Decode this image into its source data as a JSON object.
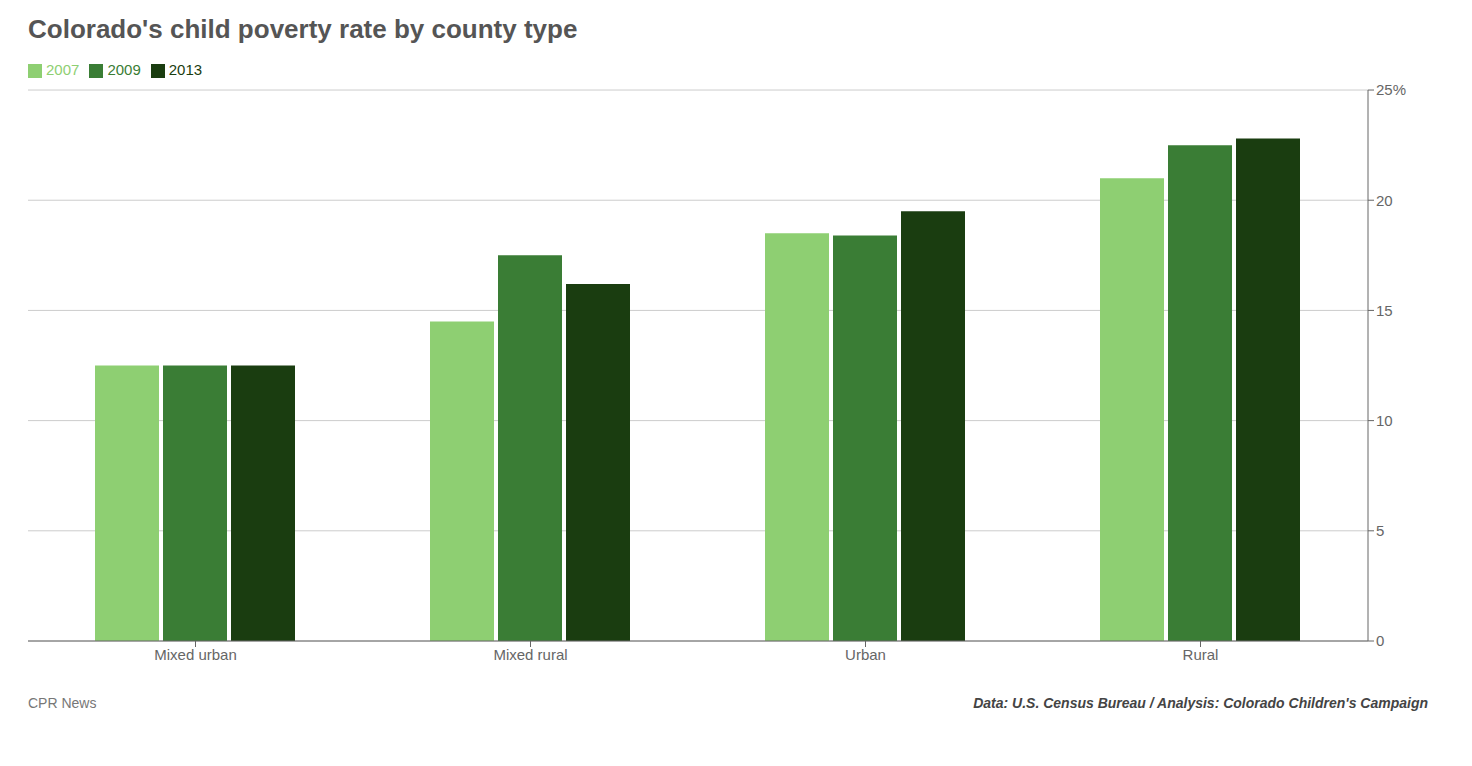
{
  "chart_data": {
    "type": "bar",
    "title": "Colorado's child poverty rate by county type",
    "categories": [
      "Mixed urban",
      "Mixed rural",
      "Urban",
      "Rural"
    ],
    "series": [
      {
        "name": "2007",
        "color": "#8ecf72",
        "values": [
          12.5,
          14.5,
          18.5,
          21.0
        ]
      },
      {
        "name": "2009",
        "color": "#3a7d35",
        "values": [
          12.5,
          17.5,
          18.4,
          22.5
        ]
      },
      {
        "name": "2013",
        "color": "#1a3d10",
        "values": [
          12.5,
          16.2,
          19.5,
          22.8
        ]
      }
    ],
    "ylim": [
      0,
      25
    ],
    "yticks": [
      0,
      5,
      10,
      15,
      20,
      {
        "value": 25,
        "label": "25%"
      }
    ],
    "grid": true,
    "legend": "upper left",
    "annotations": [
      "CPR News",
      "Data: U.S. Census Bureau / Analysis: Colorado Children's Campaign"
    ]
  }
}
